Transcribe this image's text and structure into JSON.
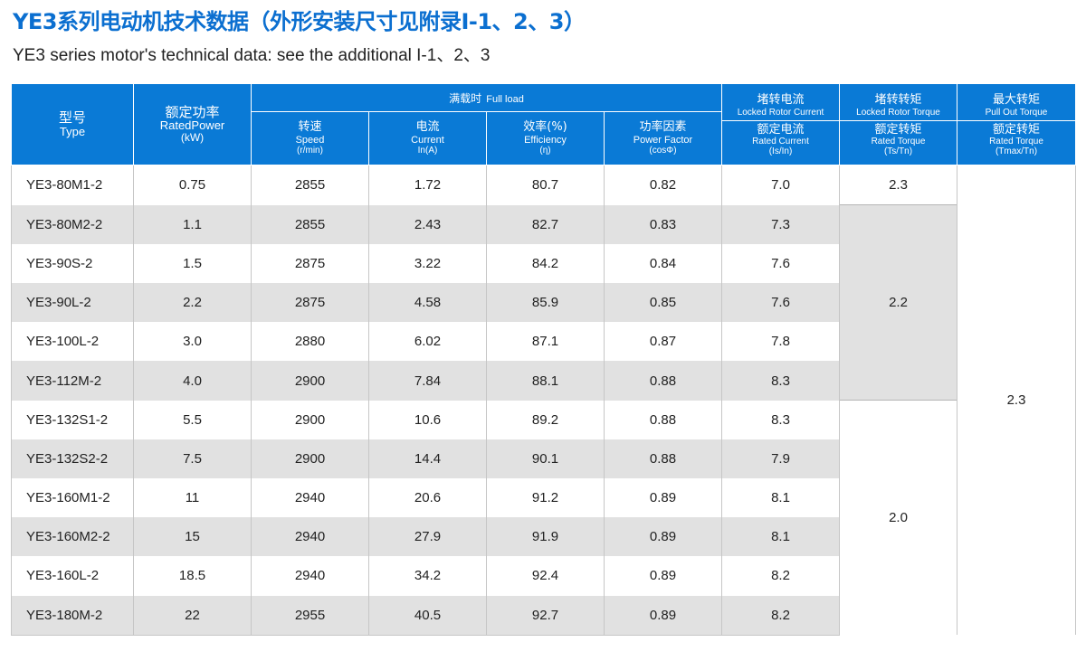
{
  "title": "YE3系列电动机技术数据（外形安装尺寸见附录I-1、2、3）",
  "subtitle": "YE3 series motor's technical data: see the additional I-1、2、3",
  "headers": {
    "type": {
      "cn": "型号",
      "en": "Type"
    },
    "rated_power": {
      "cn": "额定功率",
      "en": "RatedPower",
      "unit": "(kW)"
    },
    "full_load": {
      "cn": "满载时",
      "en": "Full load"
    },
    "speed": {
      "cn": "转速",
      "en": "Speed",
      "unit": "(r/min)"
    },
    "current": {
      "cn": "电流",
      "en": "Current",
      "unit": "In(A)"
    },
    "efficiency": {
      "cn": "效率(%)",
      "en": "Efficiency",
      "unit": "(η)"
    },
    "power_factor": {
      "cn": "功率因素",
      "en": "Power Factor",
      "unit": "(cosΦ)"
    },
    "locked_current": {
      "cn": "堵转电流",
      "en": "Locked Rotor Current",
      "cn2": "额定电流",
      "en2": "Rated Current",
      "unit": "(Is/In)"
    },
    "locked_torque": {
      "cn": "堵转转矩",
      "en": "Locked Rotor Torque",
      "cn2": "额定转矩",
      "en2": "Rated Torque",
      "unit": "(Ts/Tn)"
    },
    "max_torque": {
      "cn": "最大转矩",
      "en": "Pull Out Torque",
      "cn2": "额定转矩",
      "en2": "Rated Torque",
      "unit": "(Tmax/Tn)"
    }
  },
  "rows": [
    {
      "type": "YE3-80M1-2",
      "power": "0.75",
      "speed": "2855",
      "current": "1.72",
      "efficiency": "80.7",
      "pf": "0.82",
      "is_in": "7.0"
    },
    {
      "type": "YE3-80M2-2",
      "power": "1.1",
      "speed": "2855",
      "current": "2.43",
      "efficiency": "82.7",
      "pf": "0.83",
      "is_in": "7.3"
    },
    {
      "type": "YE3-90S-2",
      "power": "1.5",
      "speed": "2875",
      "current": "3.22",
      "efficiency": "84.2",
      "pf": "0.84",
      "is_in": "7.6"
    },
    {
      "type": "YE3-90L-2",
      "power": "2.2",
      "speed": "2875",
      "current": "4.58",
      "efficiency": "85.9",
      "pf": "0.85",
      "is_in": "7.6"
    },
    {
      "type": "YE3-100L-2",
      "power": "3.0",
      "speed": "2880",
      "current": "6.02",
      "efficiency": "87.1",
      "pf": "0.87",
      "is_in": "7.8"
    },
    {
      "type": "YE3-112M-2",
      "power": "4.0",
      "speed": "2900",
      "current": "7.84",
      "efficiency": "88.1",
      "pf": "0.88",
      "is_in": "8.3"
    },
    {
      "type": "YE3-132S1-2",
      "power": "5.5",
      "speed": "2900",
      "current": "10.6",
      "efficiency": "89.2",
      "pf": "0.88",
      "is_in": "8.3"
    },
    {
      "type": "YE3-132S2-2",
      "power": "7.5",
      "speed": "2900",
      "current": "14.4",
      "efficiency": "90.1",
      "pf": "0.88",
      "is_in": "7.9"
    },
    {
      "type": "YE3-160M1-2",
      "power": "11",
      "speed": "2940",
      "current": "20.6",
      "efficiency": "91.2",
      "pf": "0.89",
      "is_in": "8.1"
    },
    {
      "type": "YE3-160M2-2",
      "power": "15",
      "speed": "2940",
      "current": "27.9",
      "efficiency": "91.9",
      "pf": "0.89",
      "is_in": "8.1"
    },
    {
      "type": "YE3-160L-2",
      "power": "18.5",
      "speed": "2940",
      "current": "34.2",
      "efficiency": "92.4",
      "pf": "0.89",
      "is_in": "8.2"
    },
    {
      "type": "YE3-180M-2",
      "power": "22",
      "speed": "2955",
      "current": "40.5",
      "efficiency": "92.7",
      "pf": "0.89",
      "is_in": "8.2"
    }
  ],
  "locked_torque_groups": [
    {
      "value": "2.3"
    },
    {
      "value": "2.2"
    },
    {
      "value": "2.0"
    }
  ],
  "max_torque_value": "2.3"
}
